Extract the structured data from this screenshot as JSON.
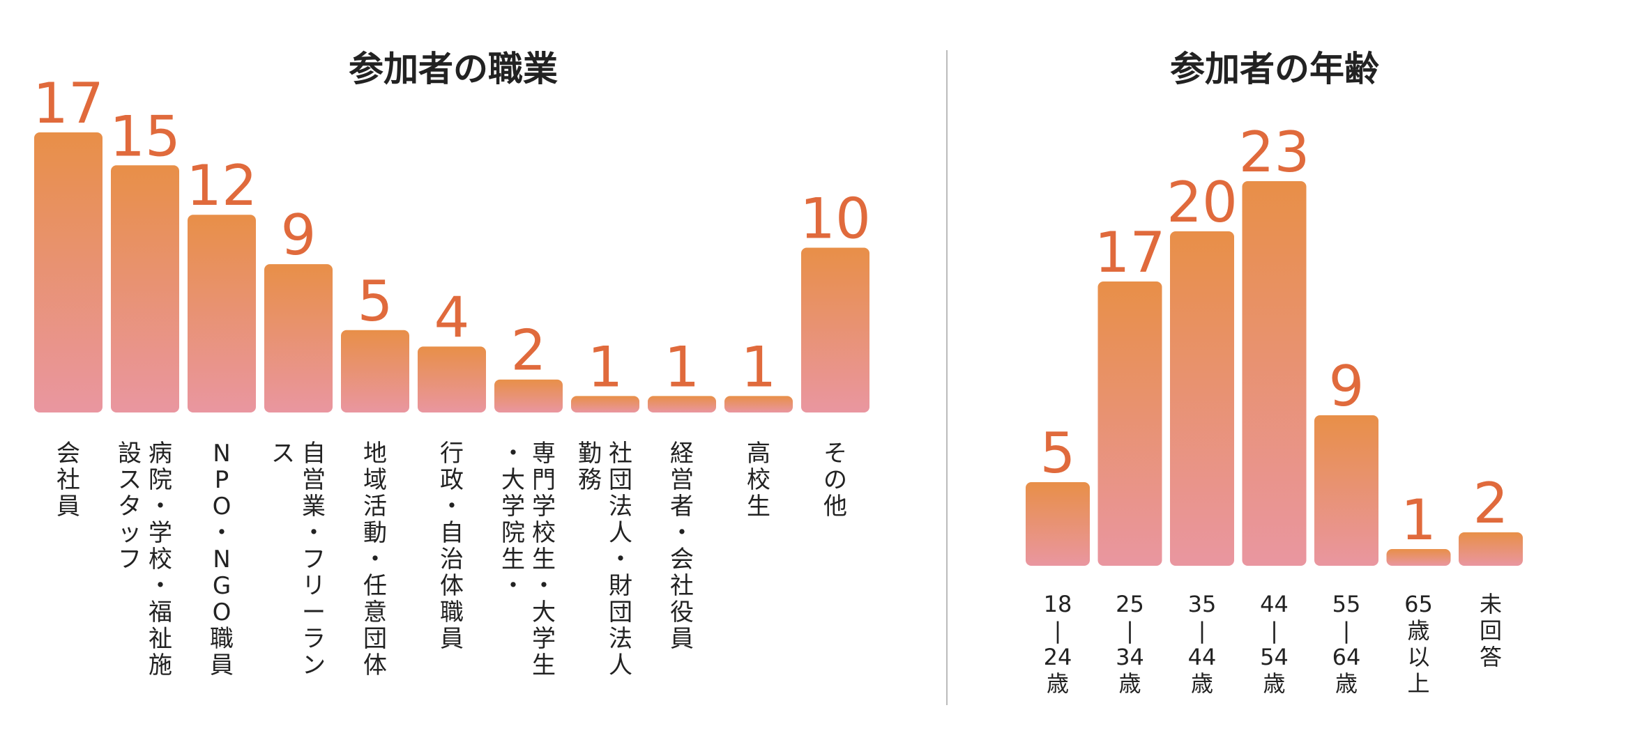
{
  "chart_data": [
    {
      "type": "bar",
      "title": "参加者の職業",
      "categories": [
        "会社員",
        "病院・学校・福祉施設スタッフ",
        "NPO・NGO職員",
        "自営業・フリーランス",
        "地域活動・任意団体",
        "行政・自治体職員",
        "専門学校生・大学生・大学院生・",
        "社団法人・財団法人勤務",
        "経営者・会社役員",
        "高校生",
        "その他"
      ],
      "values": [
        17,
        15,
        12,
        9,
        5,
        4,
        2,
        1,
        1,
        1,
        10
      ],
      "xlabel": "",
      "ylabel": "",
      "ylim": [
        0,
        17
      ],
      "grid": false,
      "legend": "none",
      "colors": {
        "bar_top": "#e88f48",
        "bar_bottom": "#e996a0",
        "value_text": "#e06a3c"
      }
    },
    {
      "type": "bar",
      "title": "参加者の年齢",
      "categories": [
        "18ー24歳",
        "25ー34歳",
        "35ー44歳",
        "44ー54歳",
        "55ー64歳",
        "65歳以上",
        "未回答"
      ],
      "values": [
        5,
        17,
        20,
        23,
        9,
        1,
        2
      ],
      "xlabel": "",
      "ylabel": "",
      "ylim": [
        0,
        23
      ],
      "grid": false,
      "legend": "none",
      "colors": {
        "bar_top": "#e88f48",
        "bar_bottom": "#e996a0",
        "value_text": "#e06a3c"
      }
    }
  ]
}
